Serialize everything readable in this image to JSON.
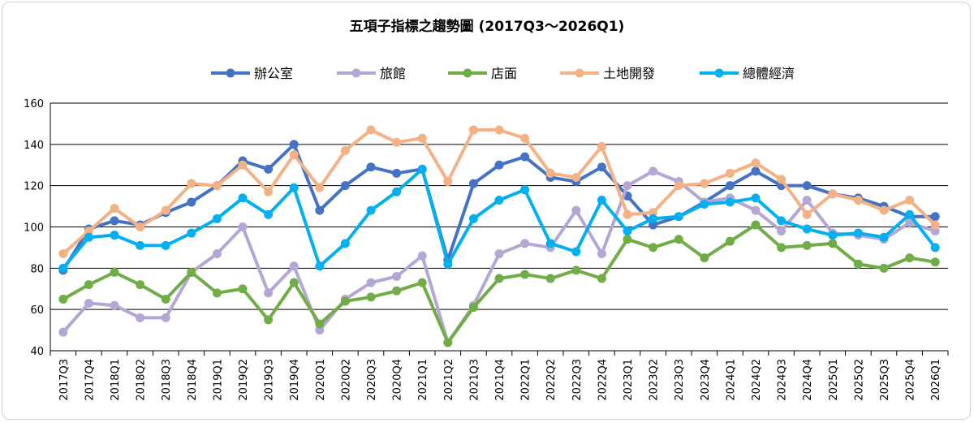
{
  "chart_data": {
    "type": "line",
    "title": "五項子指標之趨勢圖 (2017Q3～2026Q1)",
    "xlabel": "",
    "ylabel": "",
    "ylim": [
      40,
      160
    ],
    "yticks": [
      40,
      60,
      80,
      100,
      120,
      140,
      160
    ],
    "grid": true,
    "legend_position": "top",
    "categories": [
      "2017Q3",
      "2017Q4",
      "2018Q1",
      "2018Q2",
      "2018Q3",
      "2018Q4",
      "2019Q1",
      "2019Q2",
      "2019Q3",
      "2019Q4",
      "2020Q1",
      "2020Q2",
      "2020Q3",
      "2020Q4",
      "2021Q1",
      "2021Q2",
      "2021Q3",
      "2021Q4",
      "2022Q1",
      "2022Q2",
      "2022Q3",
      "2022Q4",
      "2023Q1",
      "2023Q2",
      "2023Q3",
      "2023Q4",
      "2024Q1",
      "2024Q2",
      "2024Q3",
      "2024Q4",
      "2025Q1",
      "2025Q2",
      "2025Q3",
      "2025Q4",
      "2026Q1"
    ],
    "series": [
      {
        "name": "辦公室",
        "color": "#4472C4",
        "values": [
          79,
          99,
          103,
          101,
          107,
          112,
          120,
          132,
          128,
          140,
          108,
          120,
          129,
          126,
          128,
          84,
          121,
          130,
          134,
          124,
          122,
          129,
          115,
          101,
          105,
          112,
          120,
          127,
          120,
          120,
          116,
          114,
          110,
          105,
          105
        ]
      },
      {
        "name": "旅館",
        "color": "#B4A7D6",
        "values": [
          49,
          63,
          62,
          56,
          56,
          78,
          87,
          100,
          68,
          81,
          50,
          65,
          73,
          76,
          86,
          44,
          62,
          87,
          92,
          90,
          108,
          87,
          120,
          127,
          122,
          112,
          114,
          108,
          98,
          113,
          97,
          96,
          94,
          102,
          98
        ]
      },
      {
        "name": "店面",
        "color": "#70AD47",
        "values": [
          65,
          72,
          78,
          72,
          65,
          78,
          68,
          70,
          55,
          73,
          53,
          64,
          66,
          69,
          73,
          44,
          61,
          75,
          77,
          75,
          79,
          75,
          94,
          90,
          94,
          85,
          93,
          101,
          90,
          91,
          92,
          82,
          80,
          85,
          83
        ]
      },
      {
        "name": "土地開發",
        "color": "#F4B183",
        "values": [
          87,
          98,
          109,
          100,
          108,
          121,
          120,
          130,
          117,
          135,
          119,
          137,
          147,
          141,
          143,
          122,
          147,
          147,
          143,
          126,
          124,
          139,
          106,
          107,
          120,
          121,
          126,
          131,
          123,
          106,
          116,
          113,
          108,
          113,
          101
        ]
      },
      {
        "name": "總體經濟",
        "color": "#00B0F0",
        "values": [
          80,
          95,
          96,
          91,
          91,
          97,
          104,
          114,
          106,
          119,
          81,
          92,
          108,
          117,
          128,
          82,
          104,
          113,
          118,
          92,
          88,
          113,
          98,
          104,
          105,
          111,
          112,
          114,
          103,
          99,
          96,
          97,
          95,
          106,
          90
        ]
      }
    ]
  }
}
